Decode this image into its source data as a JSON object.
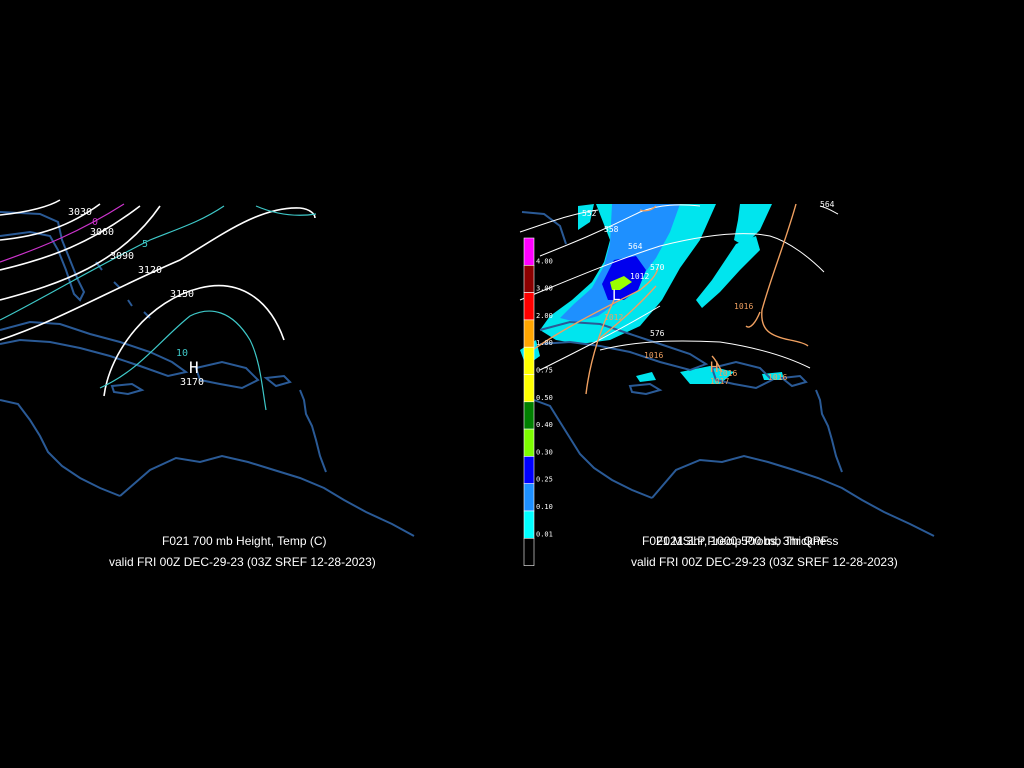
{
  "colors": {
    "background": "#000000",
    "coastline": "#2a5a96",
    "height_contour": "#ffffff",
    "temp_contour_warm": "#3ec8c8",
    "temp_contour_freezing": "#cc33cc",
    "mslp_contour": "#f0a060",
    "thickness_contour": "#ffffff"
  },
  "left_panel": {
    "caption_line1": "F021 700 mb Height, Temp (C)",
    "caption_line2": "valid FRI 00Z DEC-29-23 (03Z SREF 12-28-2023)",
    "high_marker": "H",
    "high_value": "3170",
    "height_labels": [
      "3030",
      "3060",
      "3090",
      "3120",
      "3150"
    ],
    "temp_labels": [
      "0",
      "5",
      "10"
    ]
  },
  "right_panel": {
    "caption_overlap_a": "F021 MSLP, 1000-500 mb Thickness",
    "caption_overlap_b": "F021 3hr Precip Probs, 3hr QPF",
    "caption_line2": "valid FRI 00Z DEC-29-23 (03Z SREF 12-28-2023)",
    "low_marker": "L",
    "low_value": "1012",
    "high_marker": "H",
    "high_value": "1017",
    "thickness_labels": [
      "552",
      "558",
      "564",
      "570",
      "576",
      "564"
    ],
    "mslp_labels": [
      "1016",
      "1012",
      "1016",
      "1016",
      "1016"
    ],
    "legend": [
      {
        "label": "4.00",
        "color": "#ff00ff"
      },
      {
        "label": "3.00",
        "color": "#8b0000"
      },
      {
        "label": "2.00",
        "color": "#ff0000"
      },
      {
        "label": "1.00",
        "color": "#ffa500"
      },
      {
        "label": "0.75",
        "color": "#ffff00"
      },
      {
        "label": "0.50",
        "color": "#ffff00"
      },
      {
        "label": "0.40",
        "color": "#008000"
      },
      {
        "label": "0.30",
        "color": "#7cfc00"
      },
      {
        "label": "0.25",
        "color": "#0000ff"
      },
      {
        "label": "0.10",
        "color": "#1e90ff"
      },
      {
        "label": "0.01",
        "color": "#00ffff"
      },
      {
        "label": "",
        "color": "#ffffff"
      }
    ]
  }
}
